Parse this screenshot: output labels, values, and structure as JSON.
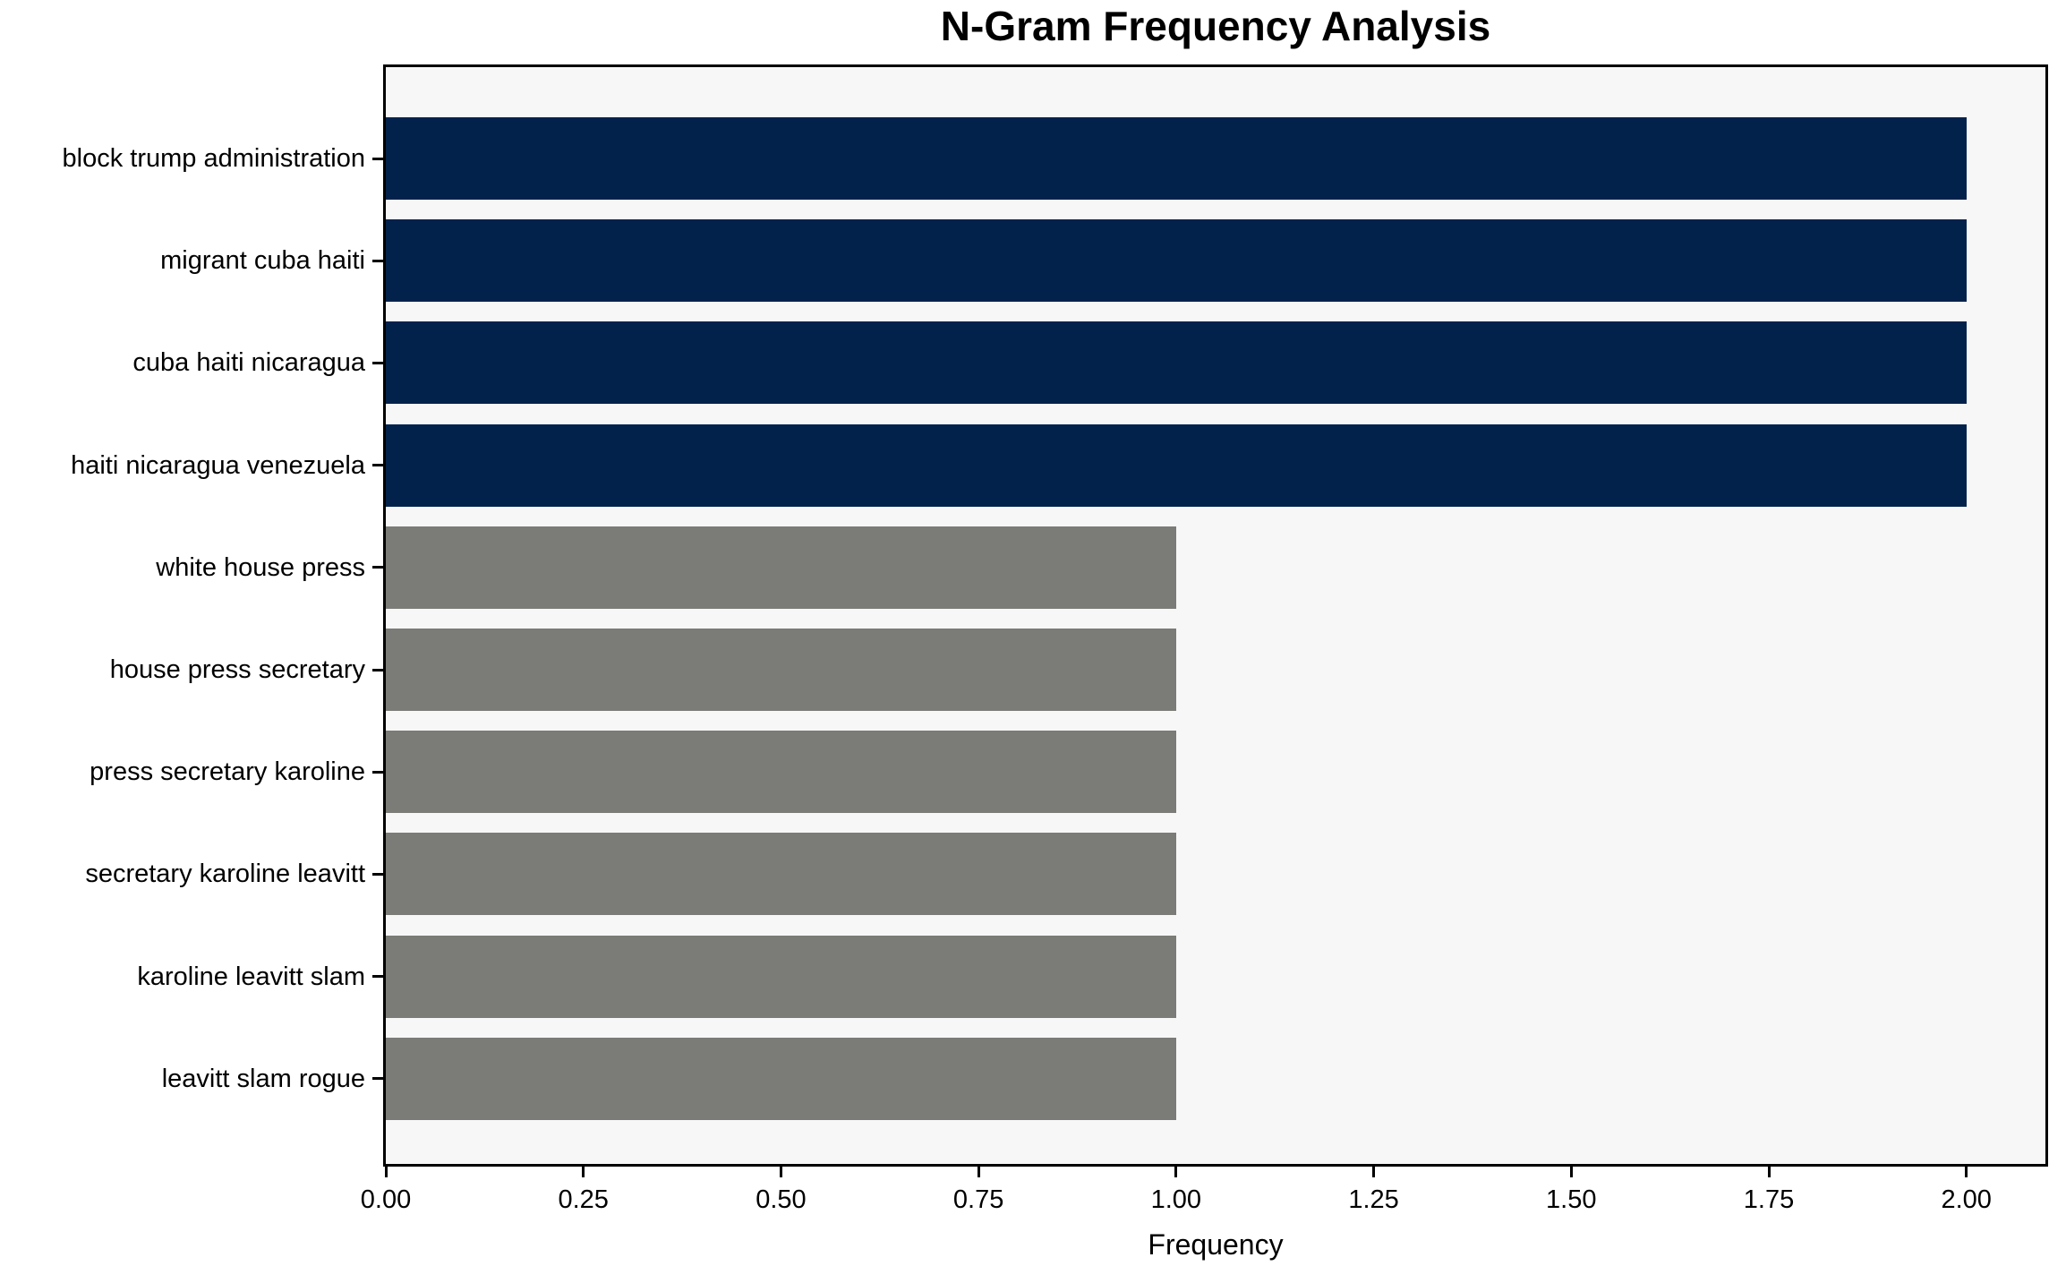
{
  "chart_data": {
    "type": "bar",
    "orientation": "horizontal",
    "title": "N-Gram Frequency Analysis",
    "xlabel": "Frequency",
    "ylabel": "",
    "categories": [
      "block trump administration",
      "migrant cuba haiti",
      "cuba haiti nicaragua",
      "haiti nicaragua venezuela",
      "white house press",
      "house press secretary",
      "press secretary karoline",
      "secretary karoline leavitt",
      "karoline leavitt slam",
      "leavitt slam rogue"
    ],
    "values": [
      2,
      2,
      2,
      2,
      1,
      1,
      1,
      1,
      1,
      1
    ],
    "bar_colors": [
      "#02224c",
      "#02224c",
      "#02224c",
      "#02224c",
      "#7b7b77",
      "#7b7b77",
      "#7b7b77",
      "#7b7b77",
      "#7b7b77",
      "#7b7b77"
    ],
    "x_tick_values": [
      0,
      0.25,
      0.5,
      0.75,
      1.0,
      1.25,
      1.5,
      1.75,
      2.0
    ],
    "x_tick_labels": [
      "0.00",
      "0.25",
      "0.50",
      "0.75",
      "1.00",
      "1.25",
      "1.50",
      "1.75",
      "2.00"
    ],
    "xlim": [
      0,
      2.1
    ],
    "grid": false,
    "legend": null,
    "colors": {
      "plot_background": "#f7f7f8",
      "figure_background": "#ffffff",
      "axis": "#000000",
      "text": "#000000",
      "bar_high": "#02224c",
      "bar_low": "#7b7b77"
    }
  }
}
